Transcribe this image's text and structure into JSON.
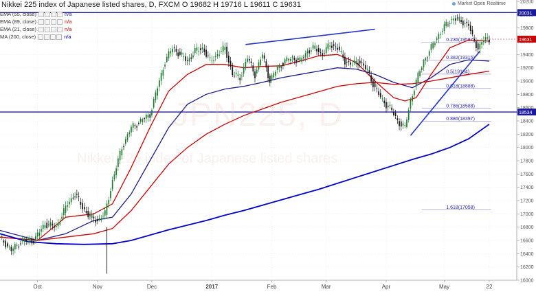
{
  "header": {
    "title": "Nikkei 225 index of Japanese listed shares, D, FXCM",
    "ohlc": "O 19682 H 19716 L 19611 C 19631"
  },
  "legend": [
    {
      "label": "EMA (55, close)",
      "value": "n/a",
      "color": "#1a1a8c"
    },
    {
      "label": "EMA (89, close)",
      "value": "n/a",
      "color": "#cc0000"
    },
    {
      "label": "EMA (21, close)",
      "value": "n/a",
      "color": "#cc0000"
    },
    {
      "label": "MA (200, close)",
      "value": "n/a",
      "color": "#0000cc"
    }
  ],
  "market_status": "Market Open  Realtime",
  "watermark": {
    "symbol": "JPN225, D",
    "description": "Nikkei 225 index of Japanese listed shares"
  },
  "chart_data": {
    "type": "line",
    "title": "Nikkei 225 index of Japanese listed shares, D, FXCM",
    "ylim": [
      16000,
      20200
    ],
    "y_ticks": [
      16000,
      16200,
      16400,
      16600,
      16800,
      17000,
      17200,
      17400,
      17600,
      17800,
      18000,
      18200,
      18400,
      18600,
      18800,
      19000,
      19200,
      19400,
      19600,
      19800,
      20000,
      20200
    ],
    "x_labels": [
      {
        "label": "Oct",
        "day": 20
      },
      {
        "label": "Nov",
        "day": 52
      },
      {
        "label": "Dec",
        "day": 81
      },
      {
        "label": "2017",
        "day": 113
      },
      {
        "label": "Feb",
        "day": 145
      },
      {
        "label": "Mar",
        "day": 174
      },
      {
        "label": "Apr",
        "day": 206
      },
      {
        "label": "May",
        "day": 237
      },
      {
        "label": "22",
        "day": 261
      }
    ],
    "x_range": [
      0,
      272
    ],
    "price_path": [
      [
        0,
        16650
      ],
      [
        6,
        16450
      ],
      [
        12,
        16600
      ],
      [
        18,
        16600
      ],
      [
        24,
        16850
      ],
      [
        30,
        16800
      ],
      [
        36,
        17150
      ],
      [
        40,
        17300
      ],
      [
        44,
        17100
      ],
      [
        48,
        16950
      ],
      [
        52,
        16900
      ],
      [
        56,
        17000
      ],
      [
        60,
        17500
      ],
      [
        65,
        18000
      ],
      [
        70,
        18300
      ],
      [
        75,
        18400
      ],
      [
        80,
        18500
      ],
      [
        84,
        18900
      ],
      [
        88,
        19300
      ],
      [
        92,
        19500
      ],
      [
        96,
        19400
      ],
      [
        100,
        19300
      ],
      [
        104,
        19450
      ],
      [
        108,
        19500
      ],
      [
        112,
        19300
      ],
      [
        116,
        19400
      ],
      [
        120,
        19500
      ],
      [
        124,
        19100
      ],
      [
        128,
        19050
      ],
      [
        132,
        19350
      ],
      [
        136,
        19100
      ],
      [
        140,
        19400
      ],
      [
        144,
        19000
      ],
      [
        148,
        19200
      ],
      [
        152,
        19300
      ],
      [
        156,
        19350
      ],
      [
        160,
        19300
      ],
      [
        164,
        19450
      ],
      [
        168,
        19500
      ],
      [
        172,
        19400
      ],
      [
        176,
        19550
      ],
      [
        180,
        19500
      ],
      [
        184,
        19300
      ],
      [
        188,
        19250
      ],
      [
        192,
        19300
      ],
      [
        196,
        19150
      ],
      [
        200,
        18900
      ],
      [
        204,
        18700
      ],
      [
        208,
        18600
      ],
      [
        212,
        18400
      ],
      [
        216,
        18300
      ],
      [
        219,
        18700
      ],
      [
        222,
        19000
      ],
      [
        226,
        19300
      ],
      [
        230,
        19500
      ],
      [
        234,
        19700
      ],
      [
        238,
        19850
      ],
      [
        242,
        19950
      ],
      [
        246,
        19900
      ],
      [
        250,
        19850
      ],
      [
        252,
        19650
      ],
      [
        255,
        19500
      ],
      [
        258,
        19620
      ],
      [
        261,
        19631
      ]
    ],
    "series": [
      {
        "name": "EMA (21, close)",
        "color": "#cc0000",
        "width": 1.3,
        "points": [
          [
            0,
            16650
          ],
          [
            20,
            16600
          ],
          [
            35,
            16950
          ],
          [
            50,
            17000
          ],
          [
            60,
            17150
          ],
          [
            70,
            17700
          ],
          [
            80,
            18300
          ],
          [
            90,
            18850
          ],
          [
            100,
            19100
          ],
          [
            110,
            19250
          ],
          [
            120,
            19250
          ],
          [
            130,
            19200
          ],
          [
            140,
            19220
          ],
          [
            150,
            19230
          ],
          [
            160,
            19300
          ],
          [
            170,
            19380
          ],
          [
            180,
            19400
          ],
          [
            190,
            19280
          ],
          [
            200,
            19000
          ],
          [
            210,
            18750
          ],
          [
            216,
            18700
          ],
          [
            222,
            18750
          ],
          [
            230,
            19100
          ],
          [
            240,
            19500
          ],
          [
            250,
            19620
          ],
          [
            261,
            19600
          ]
        ]
      },
      {
        "name": "EMA (55, close)",
        "color": "#1a1a8c",
        "width": 1.3,
        "points": [
          [
            0,
            16750
          ],
          [
            20,
            16600
          ],
          [
            35,
            16700
          ],
          [
            50,
            16900
          ],
          [
            60,
            16950
          ],
          [
            70,
            17300
          ],
          [
            80,
            17800
          ],
          [
            90,
            18300
          ],
          [
            100,
            18650
          ],
          [
            110,
            18800
          ],
          [
            120,
            18880
          ],
          [
            130,
            18920
          ],
          [
            140,
            18980
          ],
          [
            150,
            19050
          ],
          [
            160,
            19100
          ],
          [
            170,
            19150
          ],
          [
            180,
            19200
          ],
          [
            190,
            19180
          ],
          [
            200,
            19100
          ],
          [
            210,
            18980
          ],
          [
            220,
            18900
          ],
          [
            230,
            19050
          ],
          [
            240,
            19250
          ],
          [
            250,
            19320
          ],
          [
            261,
            19300
          ]
        ]
      },
      {
        "name": "EMA (89, close)",
        "color": "#cc0000",
        "width": 1.3,
        "points": [
          [
            0,
            16650
          ],
          [
            20,
            16600
          ],
          [
            35,
            16650
          ],
          [
            50,
            16700
          ],
          [
            60,
            16780
          ],
          [
            70,
            17050
          ],
          [
            80,
            17400
          ],
          [
            90,
            17750
          ],
          [
            100,
            18000
          ],
          [
            110,
            18200
          ],
          [
            120,
            18350
          ],
          [
            130,
            18480
          ],
          [
            140,
            18580
          ],
          [
            150,
            18680
          ],
          [
            160,
            18760
          ],
          [
            170,
            18840
          ],
          [
            180,
            18920
          ],
          [
            190,
            18960
          ],
          [
            200,
            18980
          ],
          [
            210,
            18950
          ],
          [
            220,
            18960
          ],
          [
            230,
            19000
          ],
          [
            240,
            19050
          ],
          [
            250,
            19100
          ],
          [
            261,
            19150
          ]
        ]
      },
      {
        "name": "MA (200, close)",
        "color": "#0000cc",
        "width": 1.8,
        "points": [
          [
            0,
            16700
          ],
          [
            15,
            16580
          ],
          [
            30,
            16550
          ],
          [
            45,
            16540
          ],
          [
            60,
            16550
          ],
          [
            70,
            16600
          ],
          [
            80,
            16680
          ],
          [
            90,
            16760
          ],
          [
            100,
            16830
          ],
          [
            110,
            16900
          ],
          [
            120,
            16980
          ],
          [
            130,
            17050
          ],
          [
            140,
            17130
          ],
          [
            150,
            17210
          ],
          [
            160,
            17290
          ],
          [
            170,
            17370
          ],
          [
            180,
            17460
          ],
          [
            190,
            17550
          ],
          [
            200,
            17640
          ],
          [
            210,
            17730
          ],
          [
            220,
            17820
          ],
          [
            230,
            17900
          ],
          [
            240,
            18000
          ],
          [
            250,
            18130
          ],
          [
            261,
            18350
          ]
        ]
      }
    ],
    "horizontal_lines": [
      {
        "value": 20031,
        "label": "20031",
        "color": "#1a1aa0"
      },
      {
        "value": 18534,
        "label": "18534",
        "color": "#1a1aa0"
      }
    ],
    "current_price": {
      "value": 19631,
      "label": "19631",
      "color": "#cc0000"
    },
    "fibonacci": [
      {
        "ratio": "0.236",
        "value": 19587,
        "label": "0.236(19587)"
      },
      {
        "ratio": "0.382",
        "value": 19315,
        "label": "0.382(19315)"
      },
      {
        "ratio": "0.5",
        "value": 19104,
        "label": "0.5(19104)"
      },
      {
        "ratio": "0.618",
        "value": 18888,
        "label": "0.618(18888)"
      },
      {
        "ratio": "0.786",
        "value": 18588,
        "label": "0.786(18588)"
      },
      {
        "ratio": "0.886",
        "value": 18397,
        "label": "0.886(18397)"
      },
      {
        "ratio": "1.618",
        "value": 17058,
        "label": "1.618(17058)"
      }
    ],
    "trendlines": [
      {
        "from": [
          131,
          19550
        ],
        "to": [
          200,
          19780
        ]
      },
      {
        "from": [
          219,
          18180
        ],
        "to": [
          256,
          19450
        ]
      }
    ]
  }
}
